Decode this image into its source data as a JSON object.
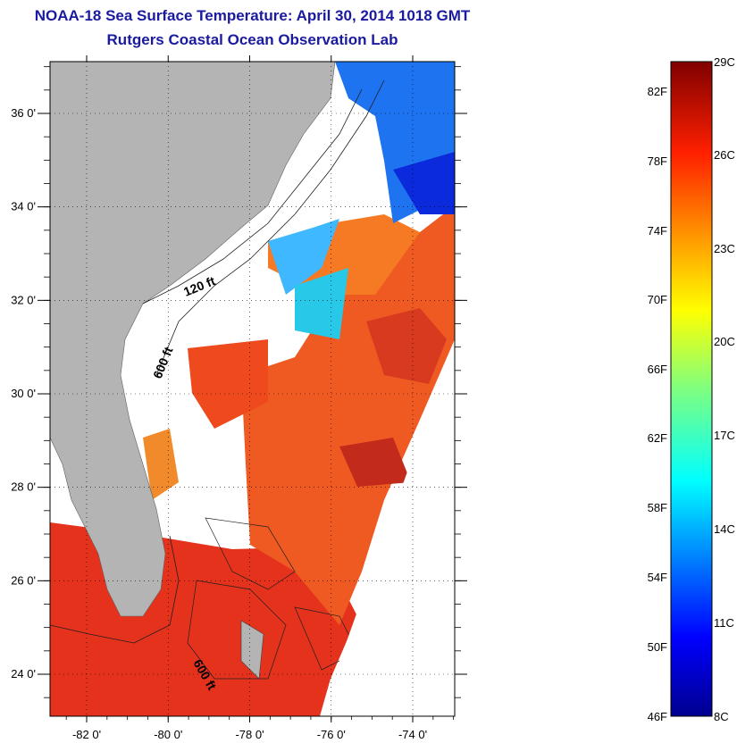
{
  "title": "NOAA-18 Sea Surface Temperature:  April 30, 2014 1018 GMT",
  "subtitle": "Rutgers Coastal Ocean Observation Lab",
  "map": {
    "lon_ticks": [
      {
        "value": -82,
        "label": "-82 0'"
      },
      {
        "value": -80,
        "label": "-80 0'"
      },
      {
        "value": -78,
        "label": "-78 0'"
      },
      {
        "value": -76,
        "label": "-76 0'"
      },
      {
        "value": -74,
        "label": "-74 0'"
      }
    ],
    "lat_ticks": [
      {
        "value": 24,
        "label": "24 0'"
      },
      {
        "value": 26,
        "label": "26 0'"
      },
      {
        "value": 28,
        "label": "28 0'"
      },
      {
        "value": 30,
        "label": "30 0'"
      },
      {
        "value": 32,
        "label": "32 0'"
      },
      {
        "value": 34,
        "label": "34 0'"
      },
      {
        "value": 36,
        "label": "36 0'"
      }
    ],
    "contour_labels": [
      "120 ft",
      "600 ft",
      "600 ft"
    ],
    "colors": {
      "land": "#b4b4b4",
      "cloud": "#ffffff",
      "warm": "#e8381e",
      "cool": "#1e64f0"
    }
  },
  "colorbar": {
    "f_labels": [
      "82F",
      "78F",
      "74F",
      "70F",
      "66F",
      "62F",
      "58F",
      "54F",
      "50F",
      "46F"
    ],
    "c_labels": [
      "29C",
      "26C",
      "23C",
      "20C",
      "17C",
      "14C",
      "11C",
      "8C"
    ],
    "min_f": 46,
    "max_f": 84
  }
}
